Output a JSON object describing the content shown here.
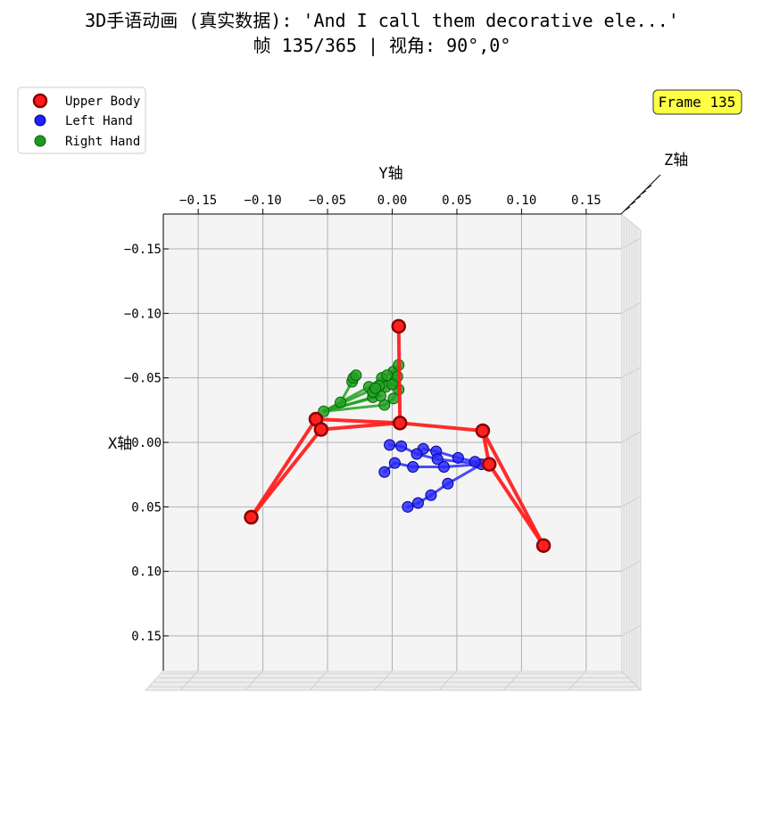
{
  "chart_data": {
    "type": "scatter",
    "title": "3D手语动画 (真实数据): 'And I call them decorative ele...'",
    "subtitle": "帧 135/365 | 视角: 90°,0°",
    "frame_badge": "Frame 135",
    "y_axis_label": "Y轴",
    "x_axis_label": "X轴",
    "z_axis_label": "Z轴",
    "y_ticks": [
      -0.15,
      -0.1,
      -0.05,
      0.0,
      0.05,
      0.1,
      0.15
    ],
    "y_tick_labels": [
      "−0.15",
      "−0.10",
      "−0.05",
      "0.00",
      "0.05",
      "0.10",
      "0.15"
    ],
    "x_ticks": [
      -0.15,
      -0.1,
      -0.05,
      0.0,
      0.05,
      0.1,
      0.15
    ],
    "x_tick_labels": [
      "−0.15",
      "−0.10",
      "−0.05",
      "0.00",
      "0.05",
      "0.10",
      "0.15"
    ],
    "y_range": [
      -0.177,
      0.177
    ],
    "x_range": [
      -0.177,
      0.177
    ],
    "grid": true,
    "legend_placement": "top-left",
    "legend": [
      {
        "label": "Upper Body",
        "color": "#ff1a1a",
        "edge": "#8b0000"
      },
      {
        "label": "Left Hand",
        "color": "#2020ff",
        "edge": "#00008b"
      },
      {
        "label": "Right Hand",
        "color": "#1f9a1f",
        "edge": "#006400"
      }
    ],
    "series": [
      {
        "name": "Upper Body",
        "color": "#ff2020",
        "edge": "#8b0000",
        "points": [
          [
            -0.109,
            0.058
          ],
          [
            -0.059,
            -0.018
          ],
          [
            -0.055,
            -0.01
          ],
          [
            0.005,
            -0.09
          ],
          [
            0.006,
            -0.015
          ],
          [
            0.07,
            -0.009
          ],
          [
            0.075,
            0.017
          ],
          [
            0.117,
            0.08
          ]
        ],
        "segments": [
          [
            0,
            1
          ],
          [
            0,
            2
          ],
          [
            1,
            2
          ],
          [
            1,
            4
          ],
          [
            2,
            4
          ],
          [
            3,
            4
          ],
          [
            4,
            5
          ],
          [
            5,
            6
          ],
          [
            5,
            7
          ],
          [
            6,
            7
          ]
        ]
      },
      {
        "name": "Left Hand",
        "color": "#2a2aff",
        "edge": "#00008b",
        "points": [
          [
            0.069,
            0.017
          ],
          [
            0.064,
            0.015
          ],
          [
            0.051,
            0.012
          ],
          [
            0.034,
            0.007
          ],
          [
            0.024,
            0.005
          ],
          [
            0.035,
            0.013
          ],
          [
            0.019,
            0.009
          ],
          [
            0.007,
            0.003
          ],
          [
            -0.002,
            0.002
          ],
          [
            0.04,
            0.019
          ],
          [
            0.016,
            0.019
          ],
          [
            0.002,
            0.016
          ],
          [
            -0.006,
            0.023
          ],
          [
            0.043,
            0.032
          ],
          [
            0.03,
            0.041
          ],
          [
            0.02,
            0.047
          ],
          [
            0.012,
            0.05
          ]
        ],
        "segments": [
          [
            0,
            1
          ],
          [
            1,
            2
          ],
          [
            2,
            3
          ],
          [
            3,
            4
          ],
          [
            0,
            5
          ],
          [
            5,
            6
          ],
          [
            6,
            7
          ],
          [
            7,
            8
          ],
          [
            0,
            9
          ],
          [
            9,
            10
          ],
          [
            10,
            11
          ],
          [
            11,
            12
          ],
          [
            0,
            13
          ],
          [
            13,
            14
          ],
          [
            14,
            15
          ],
          [
            15,
            16
          ]
        ]
      },
      {
        "name": "Right Hand",
        "color": "#22a022",
        "edge": "#006400",
        "points": [
          [
            -0.053,
            -0.024
          ],
          [
            -0.04,
            -0.031
          ],
          [
            -0.031,
            -0.047
          ],
          [
            -0.03,
            -0.05
          ],
          [
            -0.028,
            -0.052
          ],
          [
            -0.018,
            -0.043
          ],
          [
            -0.008,
            -0.05
          ],
          [
            0.001,
            -0.055
          ],
          [
            0.005,
            -0.06
          ],
          [
            -0.015,
            -0.035
          ],
          [
            -0.005,
            -0.043
          ],
          [
            0.002,
            -0.048
          ],
          [
            0.004,
            -0.051
          ],
          [
            -0.006,
            -0.029
          ],
          [
            0.001,
            -0.034
          ],
          [
            0.005,
            -0.041
          ],
          [
            0.0,
            -0.045
          ],
          [
            -0.009,
            -0.036
          ],
          [
            -0.015,
            -0.039
          ],
          [
            -0.01,
            -0.044
          ],
          [
            -0.004,
            -0.052
          ],
          [
            -0.013,
            -0.042
          ]
        ],
        "segments": [
          [
            0,
            1
          ],
          [
            1,
            2
          ],
          [
            2,
            3
          ],
          [
            3,
            4
          ],
          [
            0,
            5
          ],
          [
            5,
            6
          ],
          [
            6,
            7
          ],
          [
            7,
            8
          ],
          [
            0,
            9
          ],
          [
            9,
            10
          ],
          [
            10,
            11
          ],
          [
            11,
            12
          ],
          [
            0,
            13
          ],
          [
            13,
            14
          ],
          [
            14,
            15
          ],
          [
            15,
            16
          ],
          [
            0,
            17
          ],
          [
            17,
            18
          ],
          [
            18,
            19
          ],
          [
            19,
            20
          ],
          [
            0,
            21
          ]
        ]
      }
    ]
  }
}
